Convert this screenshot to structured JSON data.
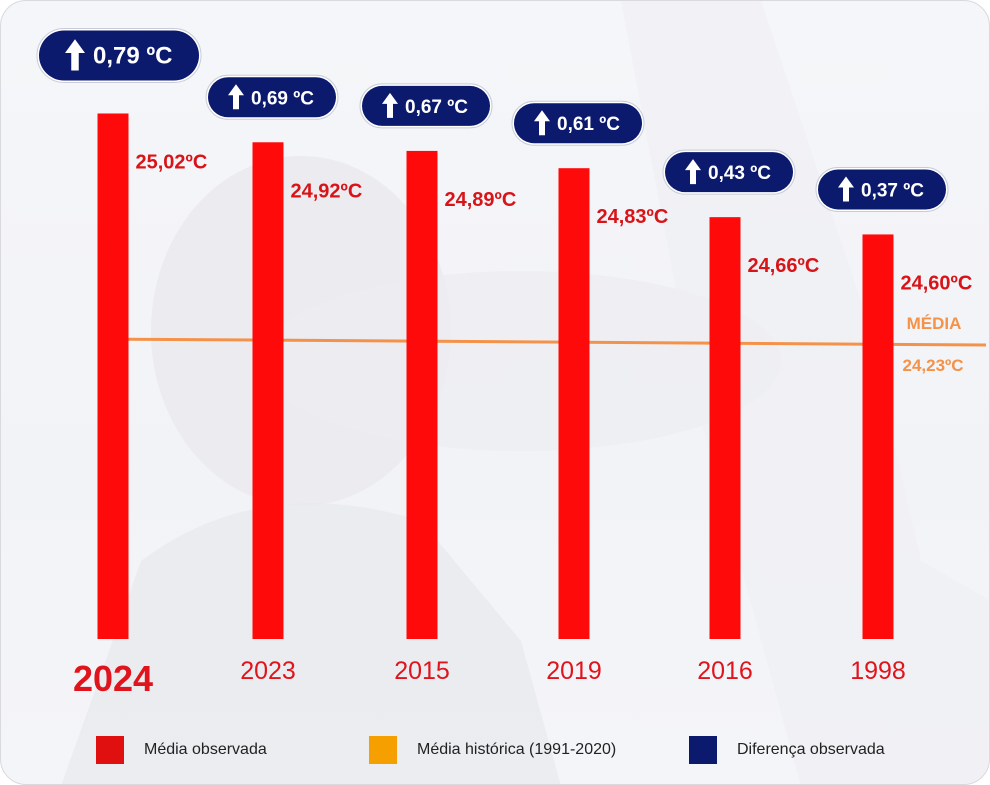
{
  "chart_data": {
    "type": "bar",
    "categories": [
      "2024",
      "2023",
      "2015",
      "2019",
      "2016",
      "1998"
    ],
    "values": [
      25.02,
      24.92,
      24.89,
      24.83,
      24.66,
      24.6
    ],
    "value_labels": [
      "25,02ºC",
      "24,92ºC",
      "24,89ºC",
      "24,83ºC",
      "24,66ºC",
      "24,60ºC"
    ],
    "differences": [
      0.79,
      0.69,
      0.67,
      0.61,
      0.43,
      0.37
    ],
    "difference_labels": [
      "0,79 ºC",
      "0,69 ºC",
      "0,67 ºC",
      "0,61 ºC",
      "0,43 ºC",
      "0,37 ºC"
    ],
    "reference_line": {
      "label": "MÉDIA",
      "value": 24.23,
      "value_label": "24,23ºC"
    },
    "highlight_category": "2024",
    "legend": [
      {
        "label": "Média observada",
        "color": "#e01010"
      },
      {
        "label": "Média histórica (1991-2020)",
        "color": "#f5a000"
      },
      {
        "label": "Diferença observada",
        "color": "#0c1a6e"
      }
    ],
    "grid": false,
    "legend_position": "bottom"
  },
  "colors": {
    "bar": "#ff0a0a",
    "value_text": "#d81418",
    "category_text": "#e0141c",
    "reference_line": "#f4924a",
    "badge_fill": "#0c1a6e",
    "badge_border": "#ffffff"
  },
  "icons": {
    "badge_icon": "arrow-up-icon"
  }
}
